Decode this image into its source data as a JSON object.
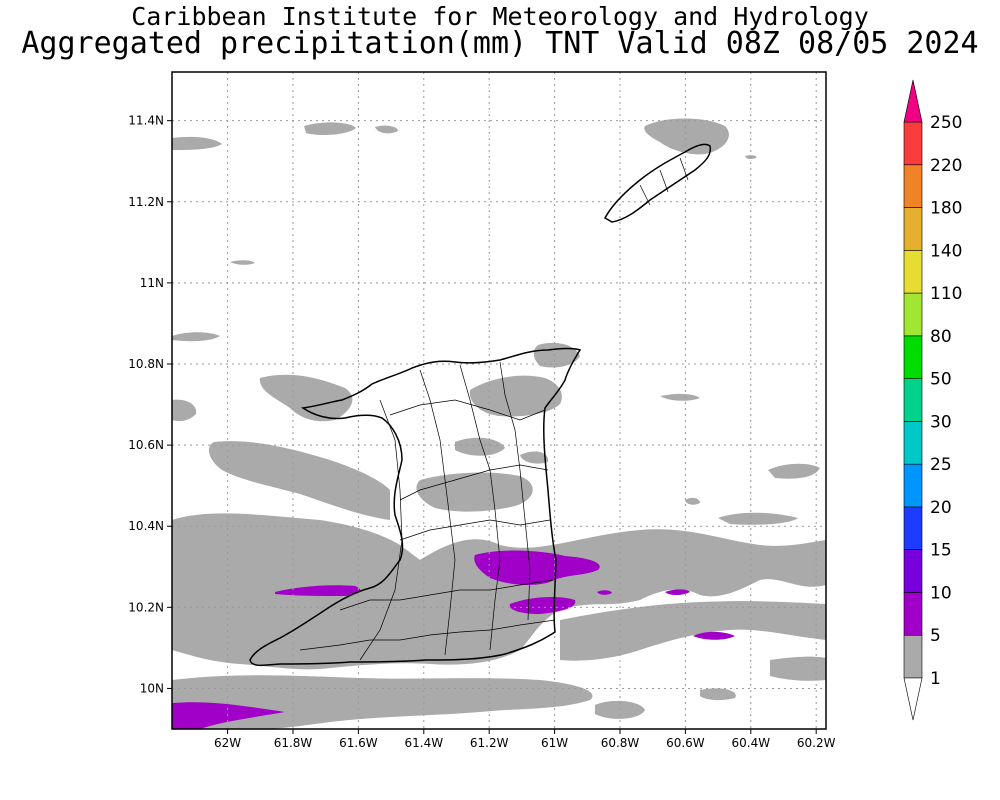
{
  "header": {
    "line1": "Caribbean Institute for Meteorology and Hydrology",
    "line2": "Aggregated precipitation(mm) TNT Valid 08Z 08/05 2024"
  },
  "map": {
    "lat_labels": [
      "10N",
      "10.2N",
      "10.4N",
      "10.6N",
      "10.8N",
      "11N",
      "11.2N",
      "11.4N"
    ],
    "lat_values": [
      10.0,
      10.2,
      10.4,
      10.6,
      10.8,
      11.0,
      11.2,
      11.4
    ],
    "lon_labels": [
      "62W",
      "61.8W",
      "61.6W",
      "61.4W",
      "61.2W",
      "61W",
      "60.8W",
      "60.6W",
      "60.4W",
      "60.2W"
    ],
    "lon_values": [
      -62.0,
      -61.8,
      -61.6,
      -61.4,
      -61.2,
      -61.0,
      -60.8,
      -60.6,
      -60.4,
      -60.2
    ],
    "extent": {
      "lon_min": -62.17,
      "lon_max": -60.17,
      "lat_min": 9.9,
      "lat_max": 11.52
    },
    "grid": "dotted"
  },
  "colorbar": {
    "labels": [
      "1",
      "5",
      "10",
      "15",
      "20",
      "25",
      "30",
      "50",
      "80",
      "110",
      "140",
      "180",
      "220",
      "250"
    ],
    "colors": [
      "#aaaaaa",
      "#a000c8",
      "#7800dc",
      "#1e3cff",
      "#0096ff",
      "#00c8c8",
      "#00d28c",
      "#00dc00",
      "#a0e632",
      "#e6dc32",
      "#e6af2d",
      "#f08228",
      "#fa3c3c",
      "#f00082"
    ],
    "under_color": "#ffffff"
  }
}
